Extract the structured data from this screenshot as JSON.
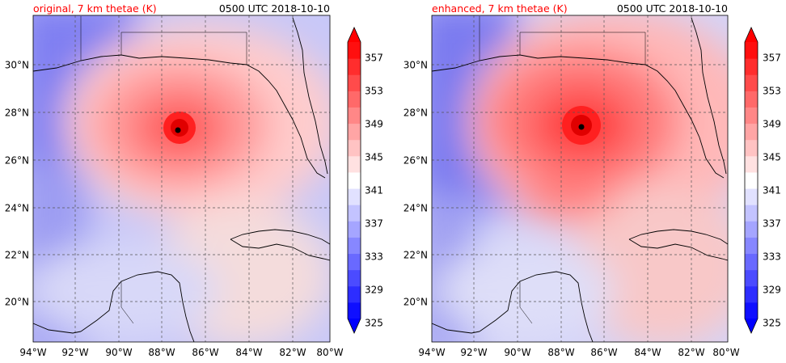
{
  "chart_data": [
    {
      "type": "heatmap",
      "title_left": "original, 7 km thetae (K)",
      "title_right": "0500 UTC 2018-10-10",
      "x_ticks": [
        "94°W",
        "92°W",
        "90°W",
        "88°W",
        "86°W",
        "84°W",
        "82°W",
        "80°W"
      ],
      "y_ticks": [
        "20°N",
        "22°N",
        "24°N",
        "26°N",
        "28°N",
        "30°N"
      ],
      "lon_range": [
        -94,
        -80.3
      ],
      "lat_range": [
        18.2,
        32
      ],
      "storm_center": {
        "lon": -87.0,
        "lat": 27.3,
        "peak_thetae": 358
      },
      "colorbar_ticks": [
        325,
        329,
        333,
        337,
        341,
        345,
        349,
        353,
        357
      ],
      "colorbar_range": [
        325,
        359
      ]
    },
    {
      "type": "heatmap",
      "title_left": "enhanced, 7 km thetae (K)",
      "title_right": "0500 UTC 2018-10-10",
      "x_ticks": [
        "94°W",
        "92°W",
        "90°W",
        "88°W",
        "86°W",
        "84°W",
        "82°W",
        "80°W"
      ],
      "y_ticks": [
        "20°N",
        "22°N",
        "24°N",
        "26°N",
        "28°N",
        "30°N"
      ],
      "lon_range": [
        -94,
        -80.3
      ],
      "lat_range": [
        18.2,
        32
      ],
      "storm_center": {
        "lon": -86.8,
        "lat": 27.4,
        "peak_thetae": 360
      },
      "colorbar_ticks": [
        325,
        329,
        333,
        337,
        341,
        345,
        349,
        353,
        357
      ],
      "colorbar_range": [
        325,
        359
      ]
    }
  ],
  "colors": {
    "title_left": "#ff0000",
    "cold": "#0000ff",
    "neutral": "#ffffff",
    "warm": "#ff0000",
    "coastline": "#000000",
    "storm_center": "#000000"
  }
}
